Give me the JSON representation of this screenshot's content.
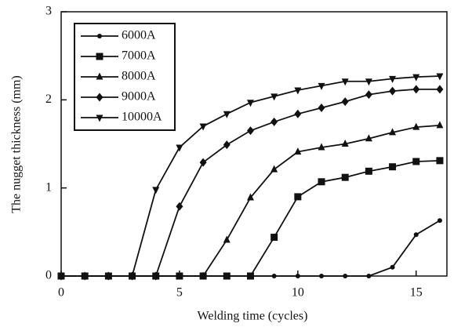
{
  "chart_data": {
    "type": "line",
    "xlabel": "Welding time (cycles)",
    "ylabel": "The nugget thickness (mm)",
    "x": [
      0,
      1,
      2,
      3,
      4,
      5,
      6,
      7,
      8,
      9,
      10,
      11,
      12,
      13,
      14,
      15,
      16
    ],
    "series": [
      {
        "name": "6000A",
        "color": "#111111",
        "marker": "circle",
        "values": [
          0,
          0,
          0,
          0,
          0,
          0,
          0,
          0,
          0,
          0,
          0,
          0,
          0,
          0,
          0.1,
          0.47,
          0.63
        ]
      },
      {
        "name": "7000A",
        "color": "#111111",
        "marker": "square",
        "values": [
          0,
          0,
          0,
          0,
          0,
          0,
          0,
          0,
          0,
          0.44,
          0.9,
          1.07,
          1.12,
          1.19,
          1.24,
          1.3,
          1.31
        ]
      },
      {
        "name": "8000A",
        "color": "#111111",
        "marker": "triangle",
        "values": [
          0,
          0,
          0,
          0,
          0,
          0,
          0,
          0.41,
          0.89,
          1.21,
          1.41,
          1.46,
          1.5,
          1.56,
          1.63,
          1.69,
          1.71
        ]
      },
      {
        "name": "9000A",
        "color": "#111111",
        "marker": "diamond",
        "values": [
          0,
          0,
          0,
          0,
          0,
          0.79,
          1.29,
          1.49,
          1.65,
          1.75,
          1.84,
          1.91,
          1.98,
          2.06,
          2.1,
          2.12,
          2.12
        ]
      },
      {
        "name": "10000A",
        "color": "#111111",
        "marker": "triangle-down",
        "values": [
          0,
          0,
          0,
          0,
          0.98,
          1.46,
          1.7,
          1.84,
          1.97,
          2.04,
          2.11,
          2.16,
          2.21,
          2.21,
          2.24,
          2.26,
          2.27
        ]
      }
    ],
    "xlim": [
      0,
      16.3
    ],
    "xticks": [
      0,
      5,
      10,
      15
    ],
    "ylim": [
      0,
      3
    ],
    "yticks": [
      0,
      1,
      2,
      3
    ],
    "legend": "upper left"
  }
}
